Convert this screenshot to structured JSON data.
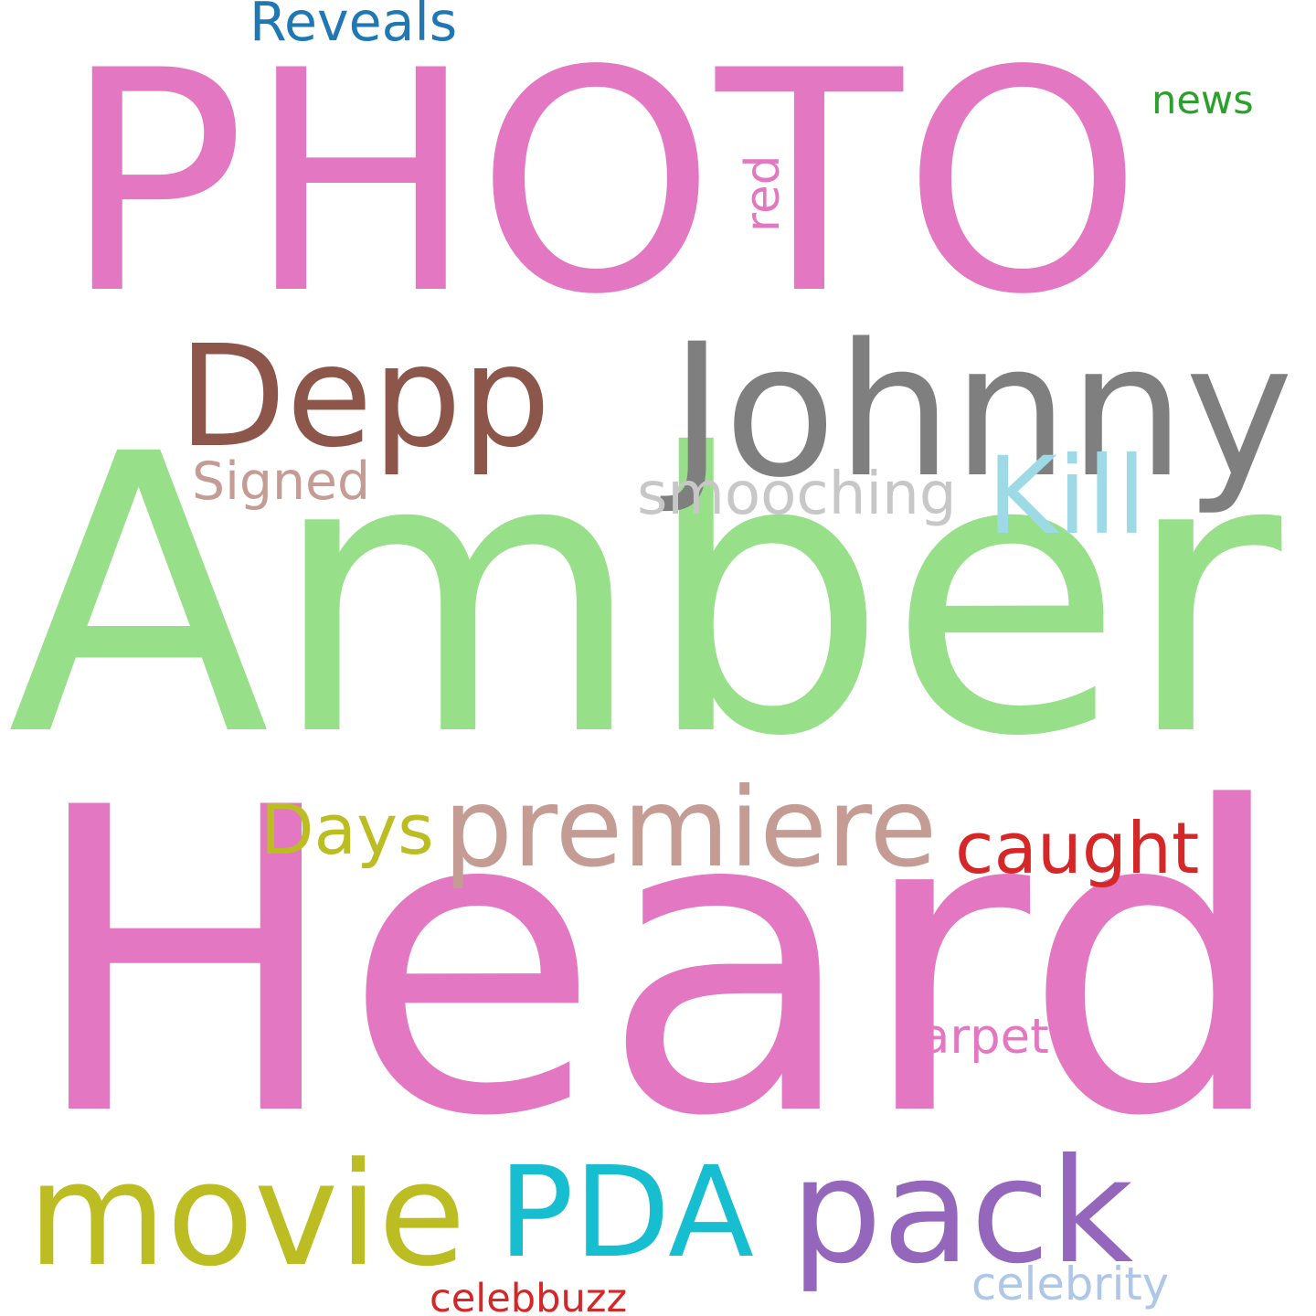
{
  "words": [
    {
      "text": "PHOTO",
      "color": "#e377c2"
    },
    {
      "text": "Amber",
      "color": "#98df8a"
    },
    {
      "text": "Heard",
      "color": "#e377c2"
    },
    {
      "text": "Johnny",
      "color": "#7f7f7f"
    },
    {
      "text": "Depp",
      "color": "#8c564b"
    },
    {
      "text": "movie",
      "color": "#bcbd22"
    },
    {
      "text": "PDA",
      "color": "#17becf"
    },
    {
      "text": "pack",
      "color": "#9467bd"
    },
    {
      "text": "premiere",
      "color": "#c49c94"
    },
    {
      "text": "Days",
      "color": "#bcbd22"
    },
    {
      "text": "caught",
      "color": "#d62728"
    },
    {
      "text": "smooching",
      "color": "#c7c7c7"
    },
    {
      "text": "Kill",
      "color": "#9edae5"
    },
    {
      "text": "Signed",
      "color": "#c49c94"
    },
    {
      "text": "Reveals",
      "color": "#1f77b4"
    },
    {
      "text": "news",
      "color": "#2ca02c"
    },
    {
      "text": "red",
      "color": "#e377c2"
    },
    {
      "text": "carpet",
      "color": "#e377c2"
    },
    {
      "text": "celebrity",
      "color": "#aec7e8"
    },
    {
      "text": "celebbuzz",
      "color": "#d62728"
    }
  ]
}
